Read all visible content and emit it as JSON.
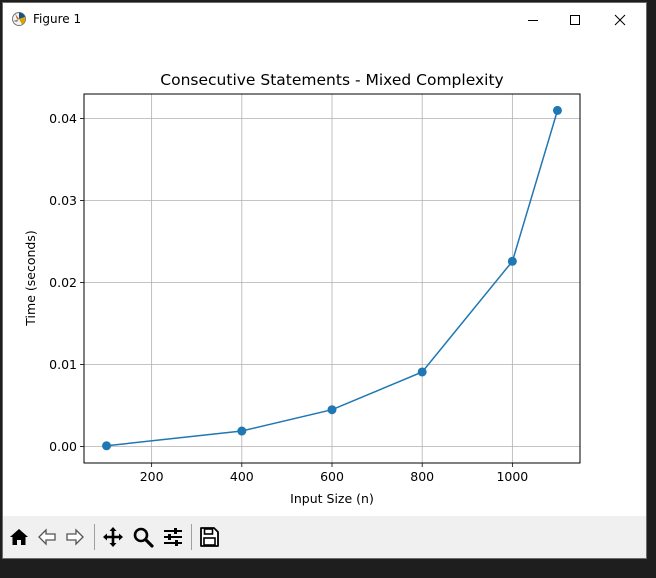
{
  "window": {
    "title": "Figure 1"
  },
  "toolbar": {
    "buttons": [
      {
        "icon": "home-icon"
      },
      {
        "icon": "back-arrow-icon"
      },
      {
        "icon": "forward-arrow-icon"
      },
      {
        "icon": "pan-move-icon"
      },
      {
        "icon": "zoom-magnifier-icon"
      },
      {
        "icon": "configure-subplots-icon"
      },
      {
        "icon": "save-floppy-icon"
      }
    ]
  },
  "colors": {
    "line": "#1f77b4",
    "grid": "#b0b0b0",
    "toolbar_bg": "#f0f0f0"
  },
  "chart_data": {
    "type": "line",
    "title": "Consecutive Statements - Mixed Complexity",
    "xlabel": "Input Size (n)",
    "ylabel": "Time (seconds)",
    "x": [
      100,
      400,
      600,
      800,
      1000,
      1100
    ],
    "series": [
      {
        "values": [
          0.0001,
          0.0019,
          0.0045,
          0.0091,
          0.0226,
          0.041
        ]
      }
    ],
    "xticks": [
      200,
      400,
      600,
      800,
      1000
    ],
    "xtick_labels": [
      "200",
      "400",
      "600",
      "800",
      "1000"
    ],
    "yticks": [
      0.0,
      0.01,
      0.02,
      0.03,
      0.04
    ],
    "ytick_labels": [
      "0.00",
      "0.01",
      "0.02",
      "0.03",
      "0.04"
    ],
    "xlim": [
      50,
      1150
    ],
    "ylim": [
      -0.002,
      0.043
    ],
    "grid": true,
    "marker": "circle"
  }
}
